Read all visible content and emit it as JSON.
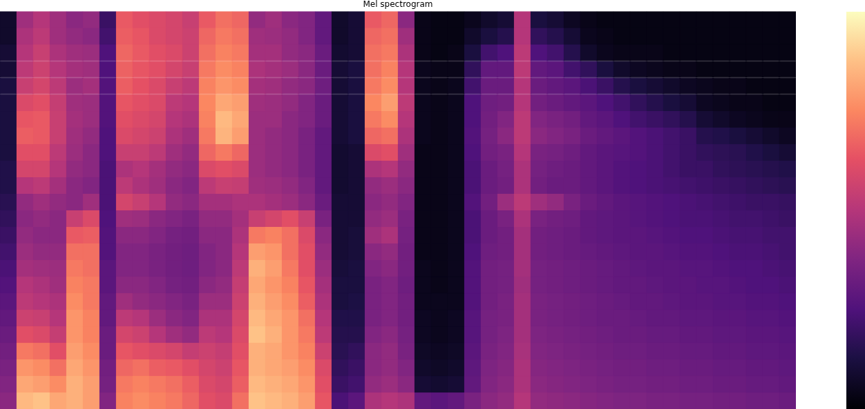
{
  "chart_data": {
    "type": "heatmap",
    "title": "Mel spectrogram",
    "color": "magma",
    "tick_labels": false,
    "colorbar": {
      "range": [
        0,
        100
      ]
    },
    "cells": [
      [
        8,
        45,
        50,
        45,
        40,
        42,
        20,
        65,
        62,
        60,
        58,
        55,
        65,
        70,
        68,
        42,
        45,
        40,
        38,
        30,
        8,
        10,
        65,
        68,
        40,
        4,
        3,
        3,
        5,
        8,
        10,
        50,
        12,
        10,
        6,
        4,
        3,
        3,
        3,
        3,
        3,
        3,
        3,
        3,
        3,
        3,
        3,
        3
      ],
      [
        8,
        48,
        52,
        45,
        42,
        40,
        22,
        66,
        64,
        60,
        58,
        56,
        68,
        72,
        70,
        45,
        44,
        42,
        38,
        30,
        8,
        10,
        68,
        70,
        45,
        4,
        3,
        3,
        8,
        12,
        15,
        50,
        18,
        15,
        10,
        5,
        4,
        3,
        3,
        3,
        3,
        3,
        3,
        3,
        3,
        3,
        3,
        3
      ],
      [
        10,
        50,
        55,
        48,
        45,
        44,
        25,
        68,
        65,
        62,
        60,
        56,
        70,
        74,
        72,
        46,
        46,
        42,
        40,
        32,
        9,
        10,
        70,
        72,
        48,
        4,
        3,
        4,
        12,
        22,
        25,
        52,
        25,
        22,
        15,
        8,
        5,
        4,
        4,
        4,
        3,
        3,
        3,
        3,
        3,
        3,
        3,
        3
      ],
      [
        10,
        52,
        56,
        50,
        46,
        45,
        25,
        67,
        64,
        62,
        58,
        55,
        72,
        76,
        74,
        48,
        46,
        44,
        40,
        32,
        10,
        12,
        70,
        74,
        50,
        5,
        4,
        4,
        18,
        30,
        30,
        52,
        30,
        28,
        22,
        18,
        12,
        8,
        6,
        5,
        4,
        4,
        3,
        3,
        3,
        3,
        3,
        3
      ],
      [
        12,
        55,
        58,
        52,
        44,
        46,
        26,
        66,
        63,
        60,
        55,
        52,
        74,
        78,
        76,
        46,
        45,
        42,
        40,
        33,
        10,
        12,
        72,
        76,
        50,
        5,
        4,
        5,
        22,
        32,
        32,
        50,
        32,
        30,
        28,
        24,
        20,
        15,
        12,
        10,
        8,
        6,
        5,
        4,
        4,
        3,
        3,
        3
      ],
      [
        12,
        60,
        62,
        54,
        45,
        44,
        26,
        64,
        62,
        60,
        52,
        50,
        75,
        82,
        80,
        45,
        44,
        42,
        38,
        32,
        10,
        12,
        75,
        80,
        52,
        5,
        4,
        5,
        25,
        33,
        34,
        50,
        34,
        32,
        30,
        28,
        25,
        22,
        18,
        15,
        12,
        10,
        6,
        5,
        4,
        4,
        3,
        3
      ],
      [
        12,
        64,
        65,
        55,
        46,
        44,
        26,
        62,
        60,
        58,
        50,
        48,
        74,
        86,
        82,
        44,
        44,
        40,
        38,
        32,
        10,
        12,
        72,
        76,
        50,
        5,
        4,
        5,
        25,
        34,
        38,
        52,
        38,
        36,
        34,
        30,
        28,
        25,
        22,
        20,
        18,
        15,
        10,
        8,
        6,
        5,
        4,
        4
      ],
      [
        12,
        66,
        65,
        55,
        45,
        42,
        25,
        60,
        58,
        56,
        48,
        45,
        72,
        85,
        80,
        44,
        42,
        40,
        36,
        30,
        10,
        12,
        68,
        70,
        48,
        5,
        4,
        5,
        26,
        35,
        40,
        52,
        40,
        38,
        36,
        32,
        30,
        28,
        26,
        24,
        22,
        20,
        15,
        14,
        12,
        10,
        8,
        6
      ],
      [
        12,
        62,
        62,
        52,
        44,
        40,
        25,
        55,
        55,
        52,
        45,
        42,
        68,
        72,
        68,
        44,
        42,
        40,
        36,
        30,
        9,
        10,
        60,
        62,
        45,
        4,
        4,
        5,
        25,
        34,
        36,
        50,
        36,
        35,
        33,
        30,
        28,
        27,
        26,
        24,
        22,
        20,
        18,
        17,
        16,
        14,
        12,
        10
      ],
      [
        14,
        58,
        58,
        50,
        42,
        40,
        24,
        48,
        50,
        46,
        42,
        40,
        60,
        62,
        60,
        44,
        42,
        40,
        36,
        30,
        9,
        10,
        48,
        50,
        42,
        4,
        4,
        5,
        24,
        32,
        35,
        48,
        35,
        33,
        32,
        30,
        28,
        26,
        25,
        24,
        22,
        20,
        20,
        18,
        17,
        16,
        15,
        14
      ],
      [
        14,
        50,
        52,
        46,
        40,
        38,
        24,
        52,
        48,
        45,
        40,
        38,
        52,
        55,
        54,
        45,
        44,
        42,
        38,
        30,
        9,
        10,
        42,
        44,
        40,
        4,
        4,
        5,
        24,
        32,
        34,
        48,
        34,
        32,
        32,
        30,
        28,
        26,
        25,
        24,
        23,
        22,
        21,
        20,
        19,
        18,
        17,
        16
      ],
      [
        16,
        42,
        45,
        42,
        40,
        45,
        24,
        58,
        55,
        50,
        42,
        40,
        46,
        46,
        48,
        48,
        46,
        44,
        40,
        32,
        10,
        10,
        40,
        42,
        38,
        4,
        4,
        5,
        26,
        34,
        44,
        52,
        45,
        42,
        36,
        32,
        30,
        28,
        27,
        26,
        25,
        24,
        23,
        22,
        21,
        20,
        20,
        19
      ],
      [
        18,
        40,
        42,
        40,
        55,
        60,
        25,
        45,
        44,
        40,
        38,
        36,
        42,
        42,
        46,
        55,
        58,
        62,
        55,
        36,
        10,
        10,
        42,
        44,
        36,
        4,
        4,
        5,
        24,
        32,
        36,
        48,
        36,
        34,
        33,
        30,
        29,
        28,
        27,
        26,
        25,
        24,
        24,
        23,
        22,
        22,
        21,
        20
      ],
      [
        20,
        42,
        40,
        40,
        65,
        66,
        26,
        40,
        40,
        38,
        35,
        34,
        40,
        40,
        48,
        72,
        74,
        70,
        60,
        40,
        10,
        11,
        45,
        48,
        35,
        4,
        4,
        5,
        24,
        32,
        34,
        46,
        34,
        33,
        32,
        30,
        29,
        28,
        28,
        27,
        26,
        25,
        25,
        24,
        23,
        23,
        22,
        22
      ],
      [
        22,
        44,
        42,
        42,
        70,
        70,
        26,
        38,
        38,
        36,
        34,
        33,
        38,
        40,
        50,
        80,
        78,
        70,
        62,
        42,
        10,
        11,
        40,
        42,
        34,
        4,
        4,
        5,
        25,
        33,
        34,
        46,
        34,
        33,
        32,
        31,
        30,
        29,
        28,
        28,
        27,
        26,
        26,
        25,
        24,
        24,
        23,
        22
      ],
      [
        24,
        46,
        45,
        44,
        72,
        70,
        28,
        38,
        38,
        36,
        34,
        33,
        38,
        40,
        52,
        84,
        80,
        72,
        62,
        44,
        11,
        12,
        38,
        40,
        34,
        5,
        4,
        5,
        26,
        34,
        35,
        46,
        35,
        34,
        33,
        32,
        31,
        30,
        29,
        28,
        28,
        27,
        27,
        26,
        25,
        25,
        24,
        23
      ],
      [
        26,
        50,
        48,
        45,
        74,
        72,
        28,
        40,
        40,
        38,
        35,
        34,
        40,
        42,
        54,
        82,
        78,
        74,
        64,
        46,
        12,
        12,
        36,
        38,
        33,
        5,
        4,
        5,
        26,
        34,
        35,
        45,
        35,
        34,
        33,
        32,
        31,
        30,
        30,
        29,
        28,
        28,
        27,
        27,
        26,
        25,
        25,
        24
      ],
      [
        28,
        52,
        50,
        48,
        76,
        72,
        30,
        45,
        42,
        40,
        38,
        36,
        44,
        44,
        56,
        84,
        80,
        76,
        66,
        48,
        12,
        13,
        36,
        38,
        34,
        5,
        5,
        5,
        26,
        34,
        36,
        46,
        36,
        35,
        34,
        33,
        32,
        31,
        30,
        30,
        29,
        28,
        28,
        27,
        27,
        26,
        26,
        25
      ],
      [
        30,
        56,
        55,
        50,
        78,
        74,
        30,
        52,
        50,
        44,
        40,
        38,
        48,
        48,
        58,
        86,
        82,
        78,
        70,
        50,
        14,
        14,
        36,
        38,
        34,
        6,
        5,
        6,
        27,
        35,
        36,
        46,
        36,
        35,
        34,
        33,
        32,
        32,
        31,
        30,
        30,
        29,
        29,
        28,
        28,
        27,
        27,
        26
      ],
      [
        32,
        62,
        60,
        54,
        78,
        74,
        32,
        58,
        56,
        50,
        45,
        42,
        52,
        50,
        60,
        88,
        84,
        78,
        72,
        52,
        15,
        15,
        38,
        40,
        35,
        6,
        5,
        6,
        27,
        35,
        37,
        46,
        37,
        36,
        35,
        34,
        33,
        32,
        32,
        31,
        31,
        30,
        30,
        29,
        29,
        28,
        28,
        27
      ],
      [
        34,
        72,
        70,
        62,
        80,
        76,
        32,
        64,
        62,
        60,
        58,
        54,
        56,
        54,
        62,
        84,
        82,
        78,
        74,
        56,
        16,
        18,
        40,
        42,
        36,
        7,
        6,
        7,
        28,
        36,
        38,
        47,
        38,
        37,
        36,
        35,
        34,
        33,
        33,
        32,
        32,
        31,
        31,
        30,
        30,
        29,
        29,
        28
      ],
      [
        36,
        78,
        76,
        70,
        82,
        78,
        34,
        68,
        70,
        66,
        65,
        62,
        58,
        56,
        64,
        84,
        82,
        80,
        76,
        60,
        18,
        20,
        40,
        42,
        38,
        8,
        7,
        8,
        29,
        37,
        39,
        48,
        39,
        38,
        37,
        36,
        35,
        34,
        34,
        33,
        33,
        32,
        32,
        31,
        31,
        30,
        30,
        29
      ],
      [
        38,
        82,
        80,
        76,
        84,
        80,
        35,
        72,
        74,
        72,
        70,
        66,
        60,
        58,
        66,
        86,
        84,
        82,
        78,
        62,
        20,
        22,
        42,
        44,
        40,
        10,
        9,
        10,
        30,
        38,
        40,
        48,
        40,
        39,
        38,
        37,
        36,
        35,
        35,
        34,
        34,
        33,
        33,
        32,
        32,
        31,
        31,
        30
      ],
      [
        40,
        86,
        88,
        82,
        84,
        80,
        38,
        74,
        76,
        74,
        72,
        68,
        62,
        60,
        70,
        88,
        86,
        84,
        80,
        64,
        24,
        28,
        48,
        50,
        48,
        30,
        28,
        30,
        36,
        40,
        42,
        50,
        42,
        41,
        40,
        39,
        38,
        37,
        37,
        36,
        36,
        35,
        35,
        34,
        34,
        33,
        33,
        32
      ]
    ]
  }
}
